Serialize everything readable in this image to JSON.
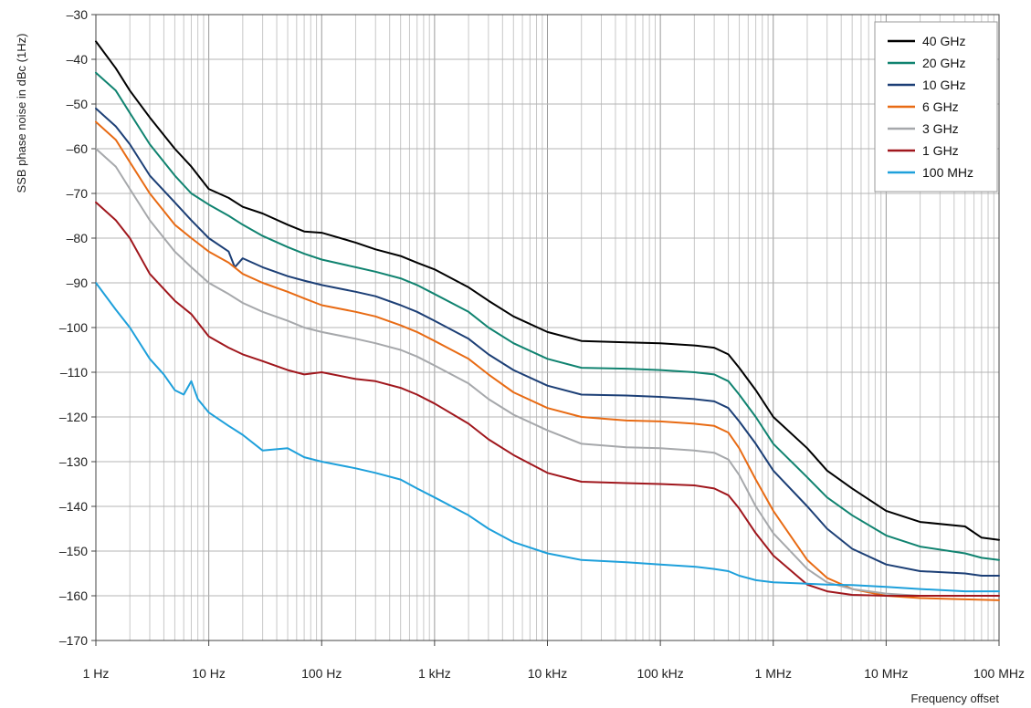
{
  "chart_data": {
    "type": "line",
    "title": "",
    "xlabel": "Frequency offset",
    "ylabel": "SSB phase noise in dBc (1Hz)",
    "x_scale": "log",
    "x_unit": "Hz",
    "xlim": [
      1,
      100000000
    ],
    "ylim": [
      -170,
      -30
    ],
    "grid": true,
    "legend_position": "top-right",
    "x_ticks": [
      {
        "value": 1,
        "label": "1 Hz"
      },
      {
        "value": 10,
        "label": "10 Hz"
      },
      {
        "value": 100,
        "label": "100 Hz"
      },
      {
        "value": 1000,
        "label": "1 kHz"
      },
      {
        "value": 10000,
        "label": "10 kHz"
      },
      {
        "value": 100000,
        "label": "100 kHz"
      },
      {
        "value": 1000000,
        "label": "1 MHz"
      },
      {
        "value": 10000000,
        "label": "10 MHz"
      },
      {
        "value": 100000000,
        "label": "100 MHz"
      }
    ],
    "y_ticks": [
      {
        "value": -30,
        "label": "–30"
      },
      {
        "value": -40,
        "label": "–40"
      },
      {
        "value": -50,
        "label": "–50"
      },
      {
        "value": -60,
        "label": "–60"
      },
      {
        "value": -70,
        "label": "–70"
      },
      {
        "value": -80,
        "label": "–80"
      },
      {
        "value": -90,
        "label": "–90"
      },
      {
        "value": -100,
        "label": "–100"
      },
      {
        "value": -110,
        "label": "–110"
      },
      {
        "value": -120,
        "label": "–120"
      },
      {
        "value": -130,
        "label": "–130"
      },
      {
        "value": -140,
        "label": "–140"
      },
      {
        "value": -150,
        "label": "–150"
      },
      {
        "value": -160,
        "label": "–160"
      },
      {
        "value": -170,
        "label": "–170"
      }
    ],
    "series": [
      {
        "name": "40 GHz",
        "color": "#000000",
        "x": [
          1,
          1.5,
          2,
          3,
          5,
          7,
          10,
          15,
          20,
          30,
          50,
          70,
          100,
          200,
          300,
          500,
          700,
          1000,
          2000,
          3000,
          5000,
          10000,
          20000,
          50000,
          100000,
          200000,
          300000,
          400000,
          500000,
          700000,
          1000000,
          2000000,
          3000000,
          5000000,
          10000000,
          20000000,
          50000000,
          70000000,
          100000000
        ],
        "y": [
          -36,
          -42,
          -47,
          -53,
          -60,
          -64,
          -69,
          -71,
          -73,
          -74.5,
          -77,
          -78.5,
          -78.8,
          -81,
          -82.5,
          -84,
          -85.5,
          -87,
          -91,
          -94,
          -97.5,
          -101,
          -103,
          -103.3,
          -103.5,
          -104,
          -104.5,
          -106,
          -109,
          -114,
          -120,
          -127,
          -132,
          -136,
          -141,
          -143.5,
          -144.5,
          -147,
          -147.5
        ]
      },
      {
        "name": "20 GHz",
        "color": "#108370",
        "x": [
          1,
          1.5,
          2,
          3,
          5,
          7,
          10,
          15,
          20,
          30,
          50,
          70,
          100,
          200,
          300,
          500,
          700,
          1000,
          2000,
          3000,
          5000,
          10000,
          20000,
          50000,
          100000,
          200000,
          300000,
          400000,
          500000,
          700000,
          1000000,
          2000000,
          3000000,
          5000000,
          10000000,
          20000000,
          50000000,
          70000000,
          100000000
        ],
        "y": [
          -43,
          -47,
          -52,
          -59,
          -66,
          -70,
          -72.5,
          -75,
          -77,
          -79.5,
          -82,
          -83.5,
          -84.8,
          -86.5,
          -87.5,
          -89,
          -90.5,
          -92.5,
          -96.5,
          -100,
          -103.5,
          -107,
          -109,
          -109.2,
          -109.5,
          -110,
          -110.5,
          -112,
          -115,
          -120,
          -126,
          -133.5,
          -138,
          -142,
          -146.5,
          -149,
          -150.5,
          -151.5,
          -152
        ]
      },
      {
        "name": "10 GHz",
        "color": "#1c3f76",
        "x": [
          1,
          1.5,
          2,
          3,
          5,
          7,
          10,
          15,
          17,
          20,
          30,
          50,
          70,
          100,
          200,
          300,
          500,
          700,
          1000,
          2000,
          3000,
          5000,
          10000,
          20000,
          50000,
          100000,
          200000,
          300000,
          400000,
          500000,
          700000,
          1000000,
          2000000,
          3000000,
          5000000,
          10000000,
          20000000,
          50000000,
          70000000,
          100000000
        ],
        "y": [
          -51,
          -55,
          -59,
          -66,
          -72,
          -76,
          -80,
          -83,
          -86.5,
          -84.5,
          -86.5,
          -88.5,
          -89.5,
          -90.5,
          -92,
          -93,
          -95,
          -96.5,
          -98.5,
          -102.5,
          -106,
          -109.5,
          -113,
          -115,
          -115.2,
          -115.5,
          -116,
          -116.5,
          -118,
          -121,
          -126,
          -132,
          -140,
          -145,
          -149.5,
          -153,
          -154.5,
          -155,
          -155.5,
          -155.5
        ]
      },
      {
        "name": "6 GHz",
        "color": "#e86b14",
        "x": [
          1,
          1.5,
          2,
          3,
          5,
          7,
          10,
          15,
          20,
          30,
          50,
          70,
          100,
          200,
          300,
          500,
          700,
          1000,
          2000,
          3000,
          5000,
          10000,
          20000,
          50000,
          100000,
          200000,
          300000,
          400000,
          500000,
          700000,
          1000000,
          2000000,
          3000000,
          5000000,
          10000000,
          20000000,
          50000000,
          100000000
        ],
        "y": [
          -54,
          -58,
          -63,
          -70,
          -77,
          -80,
          -83,
          -85.5,
          -88,
          -90,
          -92,
          -93.5,
          -95,
          -96.5,
          -97.5,
          -99.5,
          -101,
          -103,
          -107,
          -110.5,
          -114.5,
          -118,
          -120,
          -120.8,
          -121,
          -121.5,
          -122,
          -123.5,
          -127,
          -134,
          -141,
          -152,
          -156,
          -158.5,
          -160,
          -160.5,
          -160.8,
          -161
        ]
      },
      {
        "name": "3 GHz",
        "color": "#a6a8ab",
        "x": [
          1,
          1.5,
          2,
          3,
          5,
          7,
          10,
          15,
          20,
          30,
          50,
          70,
          100,
          200,
          300,
          500,
          700,
          1000,
          2000,
          3000,
          5000,
          10000,
          20000,
          50000,
          100000,
          200000,
          300000,
          400000,
          500000,
          700000,
          1000000,
          2000000,
          3000000,
          5000000,
          10000000,
          20000000,
          50000000,
          100000000
        ],
        "y": [
          -60,
          -64,
          -69,
          -76,
          -83,
          -86.5,
          -90,
          -92.5,
          -94.5,
          -96.5,
          -98.5,
          -100,
          -101,
          -102.5,
          -103.5,
          -105,
          -106.5,
          -108.5,
          -112.5,
          -116,
          -119.5,
          -123,
          -126,
          -126.8,
          -127,
          -127.5,
          -128,
          -129.5,
          -133,
          -140,
          -146,
          -154,
          -157,
          -158.5,
          -159.5,
          -160,
          -160,
          -160
        ]
      },
      {
        "name": "1 GHz",
        "color": "#a0171d",
        "x": [
          1,
          1.5,
          2,
          3,
          5,
          7,
          10,
          15,
          20,
          30,
          50,
          70,
          100,
          200,
          300,
          500,
          700,
          1000,
          2000,
          3000,
          5000,
          10000,
          20000,
          50000,
          100000,
          200000,
          300000,
          400000,
          500000,
          700000,
          1000000,
          2000000,
          3000000,
          5000000,
          10000000,
          20000000,
          50000000,
          100000000
        ],
        "y": [
          -72,
          -76,
          -80,
          -88,
          -94,
          -97,
          -102,
          -104.5,
          -106,
          -107.5,
          -109.5,
          -110.5,
          -110,
          -111.5,
          -112,
          -113.5,
          -115,
          -117,
          -121.5,
          -125,
          -128.5,
          -132.5,
          -134.5,
          -134.8,
          -135,
          -135.3,
          -136,
          -137.5,
          -140.5,
          -146,
          -151,
          -157.5,
          -159,
          -159.8,
          -160,
          -160,
          -160,
          -160
        ]
      },
      {
        "name": "100 MHz",
        "color": "#1ea0db",
        "x": [
          1,
          1.5,
          2,
          3,
          4,
          5,
          6,
          7,
          8,
          10,
          15,
          20,
          30,
          50,
          70,
          100,
          200,
          300,
          500,
          700,
          1000,
          2000,
          3000,
          5000,
          10000,
          20000,
          50000,
          100000,
          200000,
          300000,
          400000,
          500000,
          700000,
          1000000,
          2000000,
          3000000,
          5000000,
          10000000,
          20000000,
          50000000,
          100000000
        ],
        "y": [
          -90,
          -96,
          -100,
          -107,
          -110.5,
          -114,
          -115,
          -112,
          -116,
          -119,
          -122,
          -124,
          -127.5,
          -127,
          -129,
          -130,
          -131.5,
          -132.5,
          -134,
          -136,
          -138,
          -142,
          -145,
          -148,
          -150.5,
          -152,
          -152.5,
          -153,
          -153.5,
          -154,
          -154.5,
          -155.5,
          -156.5,
          -157,
          -157.3,
          -157.5,
          -157.6,
          -158,
          -158.5,
          -159,
          -159
        ]
      }
    ]
  }
}
